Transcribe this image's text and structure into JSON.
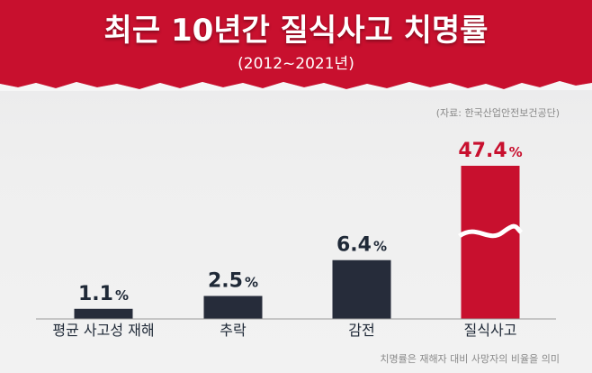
{
  "header": {
    "title": "최근 10년간 질식사고 치명률",
    "subtitle": "(2012~2021년)",
    "source": "(자료: 한국산업안전보건공단)"
  },
  "footnote": "치명률은 재해자 대비 사망자의 비율을 의미",
  "colors": {
    "banner": "#c8102e",
    "bar_dark": "#262c3a",
    "bar_highlight": "#c8102e",
    "value_dark": "#1f2937",
    "value_highlight": "#c8102e"
  },
  "chart_data": {
    "type": "bar",
    "title": "최근 10년간 질식사고 치명률",
    "subtitle": "(2012~2021년)",
    "categories": [
      "평균 사고성 재해",
      "추락",
      "감전",
      "질식사고"
    ],
    "values": [
      1.1,
      2.5,
      6.4,
      47.4
    ],
    "value_labels": [
      "1.1",
      "2.5",
      "6.4",
      "47.4"
    ],
    "unit": "%",
    "highlight_index": 3,
    "broken_axis_on_highlight": true,
    "xlabel": "",
    "ylabel": "",
    "grid": false,
    "legend": "none"
  }
}
